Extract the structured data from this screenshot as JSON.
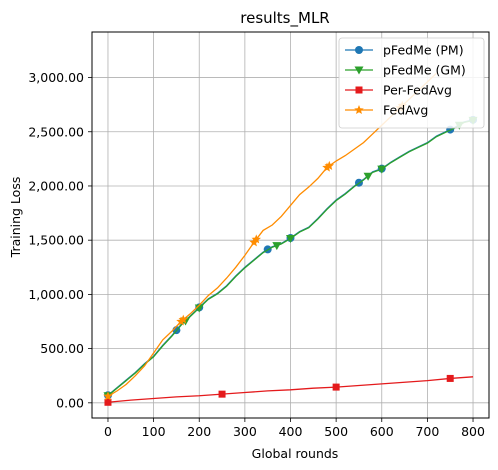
{
  "chart_data": {
    "type": "line",
    "title": "results_MLR",
    "xlabel": "Global rounds",
    "ylabel": "Training Loss",
    "xlim": [
      -35,
      835
    ],
    "ylim": [
      -140,
      3420
    ],
    "xticks": [
      0,
      100,
      200,
      300,
      400,
      500,
      600,
      700,
      800
    ],
    "xtick_labels": [
      "0",
      "100",
      "200",
      "300",
      "400",
      "500",
      "600",
      "700",
      "800"
    ],
    "yticks": [
      0,
      500,
      1000,
      1500,
      2000,
      2500,
      3000
    ],
    "ytick_labels": [
      "0.00",
      "500.00",
      "1,000.00",
      "1,500.00",
      "2,000.00",
      "2,500.00",
      "3,000.00"
    ],
    "grid": true,
    "legend_position": "top-right",
    "series": [
      {
        "name": "pFedMe (PM)",
        "color": "#1f77b4",
        "marker": "circle",
        "marker_every": 200,
        "x": [
          0,
          20,
          40,
          60,
          80,
          100,
          120,
          140,
          160,
          180,
          200,
          220,
          240,
          260,
          280,
          300,
          320,
          340,
          360,
          380,
          400,
          420,
          440,
          460,
          480,
          500,
          520,
          540,
          560,
          580,
          600,
          620,
          640,
          660,
          680,
          700,
          720,
          740,
          760,
          780,
          800
        ],
        "y": [
          70,
          140,
          210,
          280,
          360,
          430,
          530,
          620,
          720,
          800,
          880,
          960,
          1010,
          1080,
          1170,
          1250,
          1320,
          1390,
          1440,
          1470,
          1520,
          1580,
          1620,
          1700,
          1790,
          1870,
          1930,
          2000,
          2060,
          2130,
          2160,
          2220,
          2270,
          2320,
          2360,
          2400,
          2460,
          2500,
          2540,
          2590,
          2610
        ]
      },
      {
        "name": "pFedMe (GM)",
        "color": "#2ca02c",
        "marker": "triangle-down",
        "marker_every": 200,
        "x": [
          0,
          20,
          40,
          60,
          80,
          100,
          120,
          140,
          160,
          180,
          200,
          220,
          240,
          260,
          280,
          300,
          320,
          340,
          360,
          380,
          400,
          420,
          440,
          460,
          480,
          500,
          520,
          540,
          560,
          580,
          600,
          620,
          640,
          660,
          680,
          700,
          720,
          740,
          760,
          780,
          800
        ],
        "y": [
          65,
          135,
          205,
          275,
          355,
          425,
          525,
          615,
          715,
          795,
          875,
          955,
          1005,
          1075,
          1165,
          1245,
          1315,
          1385,
          1435,
          1465,
          1515,
          1575,
          1615,
          1695,
          1785,
          1865,
          1925,
          1995,
          2055,
          2125,
          2155,
          2215,
          2265,
          2315,
          2355,
          2395,
          2455,
          2495,
          2535,
          2585,
          2605
        ]
      },
      {
        "name": "Per-FedAvg",
        "color": "#e41a1c",
        "marker": "square",
        "marker_every": 250,
        "x": [
          0,
          50,
          100,
          150,
          200,
          250,
          300,
          350,
          400,
          450,
          500,
          550,
          600,
          650,
          700,
          750,
          800
        ],
        "y": [
          5,
          25,
          40,
          55,
          65,
          80,
          95,
          110,
          120,
          135,
          145,
          160,
          175,
          190,
          205,
          225,
          240
        ]
      },
      {
        "name": "FedAvg",
        "color": "#ff8c00",
        "marker": "star",
        "marker_every": 160,
        "x": [
          0,
          20,
          40,
          60,
          80,
          100,
          120,
          140,
          160,
          180,
          200,
          220,
          240,
          260,
          280,
          300,
          320,
          340,
          360,
          380,
          400,
          420,
          440,
          460,
          480,
          500,
          520,
          540,
          560,
          580,
          600,
          620,
          640,
          660,
          680,
          700,
          720
        ],
        "y": [
          60,
          110,
          170,
          250,
          340,
          460,
          580,
          660,
          750,
          820,
          900,
          990,
          1060,
          1150,
          1250,
          1360,
          1480,
          1590,
          1640,
          1720,
          1820,
          1920,
          1990,
          2070,
          2170,
          2230,
          2280,
          2340,
          2400,
          2480,
          2560,
          2640,
          2720,
          2800,
          2880,
          2960,
          3040
        ]
      }
    ]
  }
}
